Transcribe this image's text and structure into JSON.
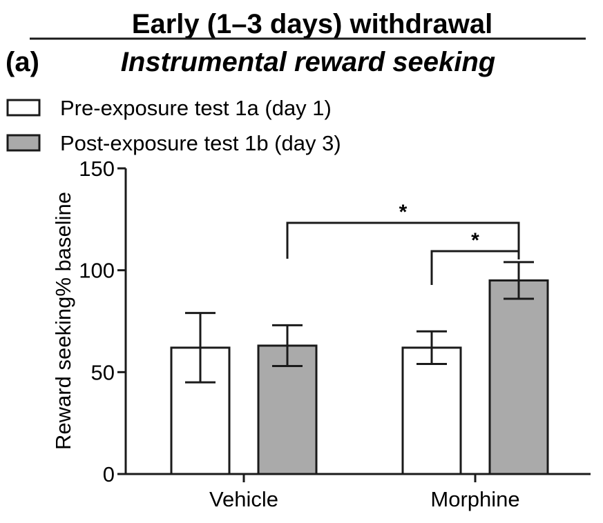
{
  "chart_data": {
    "type": "bar",
    "title": "Early (1–3 days) withdrawal",
    "panel_label": "(a)",
    "subtitle": "Instrumental reward seeking",
    "ylabel": "Reward seeking% baseline",
    "xlabel": "",
    "ylim": [
      0,
      150
    ],
    "yticks": [
      "0",
      "50",
      "100",
      "150"
    ],
    "categories": [
      "Vehicle",
      "Morphine"
    ],
    "legend_position": "top-left",
    "series": [
      {
        "name": "Pre-exposure test 1a (day 1)",
        "color": "#ffffff",
        "values": [
          62,
          62
        ],
        "error": [
          17,
          8
        ]
      },
      {
        "name": "Post-exposure test 1b (day 3)",
        "color": "#aaaaaa",
        "values": [
          63,
          95
        ],
        "error": [
          10,
          9
        ]
      }
    ],
    "significance": [
      {
        "from": "Vehicle / Post-exposure test 1b (day 3)",
        "to": "Morphine / Post-exposure test 1b (day 3)",
        "label": "*"
      },
      {
        "from": "Morphine / Pre-exposure test 1a (day 1)",
        "to": "Morphine / Post-exposure test 1b (day 3)",
        "label": "*"
      }
    ]
  }
}
